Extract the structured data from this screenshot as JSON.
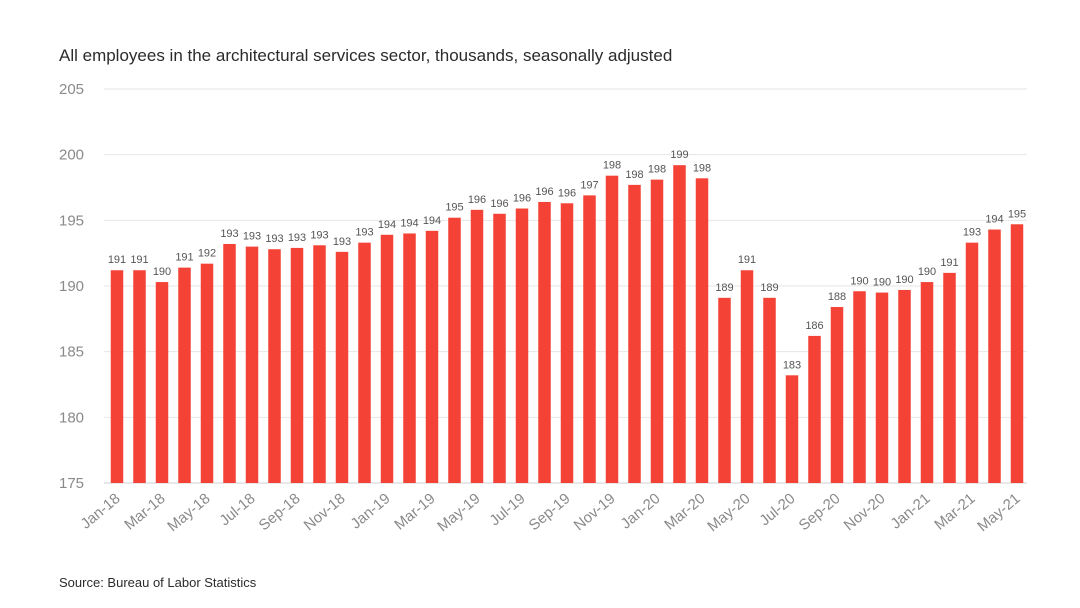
{
  "chart_data": {
    "type": "bar",
    "title": "All employees  in the architectural  services sector, thousands, seasonally adjusted",
    "source": "Source: Bureau of Labor Statistics",
    "xlabel": "",
    "ylabel": "",
    "ylim": [
      175,
      205
    ],
    "yticks": [
      175,
      180,
      185,
      190,
      195,
      200,
      205
    ],
    "grid": true,
    "bar_color": "#f44336",
    "categories": [
      "Jan-18",
      "Feb-18",
      "Mar-18",
      "Apr-18",
      "May-18",
      "Jun-18",
      "Jul-18",
      "Aug-18",
      "Sep-18",
      "Oct-18",
      "Nov-18",
      "Dec-18",
      "Jan-19",
      "Feb-19",
      "Mar-19",
      "Apr-19",
      "May-19",
      "Jun-19",
      "Jul-19",
      "Aug-19",
      "Sep-19",
      "Oct-19",
      "Nov-19",
      "Dec-19",
      "Jan-20",
      "Feb-20",
      "Mar-20",
      "Apr-20",
      "May-20",
      "Jun-20",
      "Jul-20",
      "Aug-20",
      "Sep-20",
      "Oct-20",
      "Nov-20",
      "Dec-20",
      "Jan-21",
      "Feb-21",
      "Mar-21",
      "Apr-21",
      "May-21"
    ],
    "x_tick_labels": [
      "Jan-18",
      "Mar-18",
      "May-18",
      "Jul-18",
      "Sep-18",
      "Nov-18",
      "Jan-19",
      "Mar-19",
      "May-19",
      "Jul-19",
      "Sep-19",
      "Nov-19",
      "Jan-20",
      "Mar-20",
      "May-20",
      "Jul-20",
      "Sep-20",
      "Nov-20",
      "Jan-21",
      "Mar-21",
      "May-21"
    ],
    "values": [
      191.2,
      191.2,
      190.3,
      191.4,
      191.7,
      193.2,
      193.0,
      192.8,
      192.9,
      193.1,
      192.6,
      193.3,
      193.9,
      194.0,
      194.2,
      195.2,
      195.8,
      195.5,
      195.9,
      196.4,
      196.3,
      196.9,
      198.4,
      197.7,
      198.1,
      199.2,
      198.2,
      189.1,
      191.2,
      189.1,
      183.2,
      186.2,
      188.4,
      189.6,
      189.5,
      189.7,
      190.3,
      191.0,
      193.3,
      194.3,
      194.7
    ],
    "data_labels": [
      "191",
      "191",
      "190",
      "191",
      "192",
      "193",
      "193",
      "193",
      "193",
      "193",
      "193",
      "193",
      "194",
      "194",
      "194",
      "195",
      "196",
      "196",
      "196",
      "196",
      "196",
      "197",
      "198",
      "198",
      "198",
      "199",
      "198",
      "189",
      "191",
      "189",
      "183",
      "186",
      "188",
      "190",
      "190",
      "190",
      "190",
      "191",
      "193",
      "194",
      "195"
    ]
  }
}
